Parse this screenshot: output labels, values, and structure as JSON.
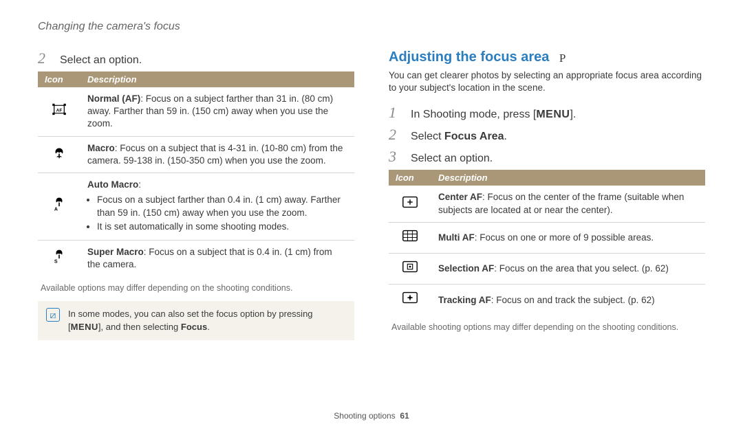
{
  "page_header": "Changing the camera's focus",
  "left": {
    "step_num": "2",
    "step_text": "Select an option.",
    "table": {
      "header_bg": "#a99778",
      "header_fg": "#ffffff",
      "cols": [
        "Icon",
        "Description"
      ],
      "rows": [
        {
          "icon": "normal-af",
          "bold": "Normal (AF)",
          "text": ": Focus on a subject farther than 31 in. (80 cm) away. Farther than 59 in. (150 cm) away when you use the zoom."
        },
        {
          "icon": "macro",
          "bold": "Macro",
          "text": ": Focus on a subject that is 4-31 in. (10-80 cm) from the camera. 59-138 in. (150-350 cm) when you use the zoom."
        },
        {
          "icon": "auto-macro",
          "bold": "Auto Macro",
          "text": ":",
          "bullets": [
            "Focus on a subject farther than 0.4 in. (1 cm) away. Farther than 59 in. (150 cm) away when you use the zoom.",
            "It is set automatically in some shooting modes."
          ]
        },
        {
          "icon": "super-macro",
          "bold": "Super Macro",
          "text": ": Focus on a subject that is 0.4 in. (1 cm) from the camera."
        }
      ]
    },
    "caption": "Available options may differ depending on the shooting conditions.",
    "note": {
      "pre": "In some modes, you can also set the focus option by pressing [",
      "menu": "MENU",
      "mid": "], and then selecting ",
      "bold": "Focus",
      "post": "."
    }
  },
  "right": {
    "title": "Adjusting the focus area",
    "mode": "P",
    "intro": "You can get clearer photos by selecting an appropriate focus area according to your subject's location in the scene.",
    "steps": [
      {
        "n": "1",
        "pre": "In Shooting mode, press [",
        "menu": "MENU",
        "post": "]."
      },
      {
        "n": "2",
        "pre": "Select ",
        "bold": "Focus Area",
        "post": "."
      },
      {
        "n": "3",
        "text": "Select an option."
      }
    ],
    "table": {
      "header_bg": "#a99778",
      "header_fg": "#ffffff",
      "cols": [
        "Icon",
        "Description"
      ],
      "rows": [
        {
          "icon": "center-af",
          "bold": "Center AF",
          "text": ": Focus on the center of the frame (suitable when subjects are located at or near the center)."
        },
        {
          "icon": "multi-af",
          "bold": "Multi AF",
          "text": ": Focus on one or more of 9 possible areas."
        },
        {
          "icon": "selection-af",
          "bold": "Selection AF",
          "text": ": Focus on the area that you select. (p. 62)"
        },
        {
          "icon": "tracking-af",
          "bold": "Tracking AF",
          "text": ": Focus on and track the subject. (p. 62)"
        }
      ]
    },
    "caption": "Available shooting options may differ depending on the shooting conditions."
  },
  "footer": {
    "section": "Shooting options",
    "page": "61"
  },
  "icons": {
    "normal-af": "<svg class='svgicon' viewBox='0 0 32 24'><rect x='7' y='5' width='18' height='14' rx='2' fill='none' stroke='#000' stroke-width='1.5'/><rect x='4' y='2' width='4' height='4' fill='#000'/><rect x='24' y='2' width='4' height='4' fill='#000'/><rect x='4' y='18' width='4' height='4' fill='#000'/><rect x='24' y='18' width='4' height='4' fill='#000'/><text x='16' y='16' text-anchor='middle' font-size='8' font-family='Arial' font-weight='bold'>AF</text></svg>",
    "macro": "<svg class='svgicon' viewBox='0 0 32 24'><path d='M16 4 C10 4 8 10 10 14 C12 10 16 10 16 14 C16 10 20 10 22 14 C24 10 22 4 16 4 Z' fill='#000'/><path d='M16 14 L16 22' stroke='#000' stroke-width='2'/><path d='M12 20 C14 18 18 18 20 20' fill='none' stroke='#000' stroke-width='1.5'/></svg>",
    "auto-macro": "<svg class='svgicon' viewBox='0 0 32 28'><path d='M16 2 C11 2 9 7 11 11 C13 8 16 8 16 11 C16 8 19 8 21 11 C23 7 21 2 16 2 Z' fill='#000'/><path d='M16 11 L16 18' stroke='#000' stroke-width='2'/><text x='7' y='26' font-size='9' font-family='Arial' font-weight='bold'>A</text></svg>",
    "super-macro": "<svg class='svgicon' viewBox='0 0 32 28'><path d='M16 2 C11 2 9 7 11 11 C13 8 16 8 16 11 C16 8 19 8 21 11 C23 7 21 2 16 2 Z' fill='#000'/><path d='M16 11 L16 18' stroke='#000' stroke-width='2'/><text x='7' y='26' font-size='9' font-family='Arial' font-weight='bold'>S</text></svg>",
    "center-af": "<svg class='svgicon' viewBox='0 0 28 22'><rect x='3' y='3' width='22' height='16' rx='2' fill='none' stroke='#000' stroke-width='1.5'/><line x1='14' y1='7' x2='14' y2='15' stroke='#000' stroke-width='1.5'/><line x1='10' y1='11' x2='18' y2='11' stroke='#000' stroke-width='1.5'/></svg>",
    "multi-af": "<svg class='svgicon' viewBox='0 0 28 22'><rect x='3' y='3' width='22' height='16' rx='2' fill='none' stroke='#000' stroke-width='1.5'/><line x1='10.3' y1='3' x2='10.3' y2='19' stroke='#000' stroke-width='1'/><line x1='17.6' y1='3' x2='17.6' y2='19' stroke='#000' stroke-width='1'/><line x1='3' y1='8.3' x2='25' y2='8.3' stroke='#000' stroke-width='1'/><line x1='3' y1='13.6' x2='25' y2='13.6' stroke='#000' stroke-width='1'/></svg>",
    "selection-af": "<svg class='svgicon' viewBox='0 0 28 22'><rect x='3' y='3' width='22' height='16' rx='2' fill='none' stroke='#000' stroke-width='1.5'/><rect x='10' y='7' width='8' height='8' fill='none' stroke='#000' stroke-width='1.2'/><circle cx='14' cy='11' r='1.5' fill='#000'/></svg>",
    "tracking-af": "<svg class='svgicon' viewBox='0 0 28 22'><rect x='3' y='3' width='22' height='16' rx='2' fill='none' stroke='#000' stroke-width='1.5'/><line x1='10' y1='11' x2='18' y2='11' stroke='#000' stroke-width='1.5'/><line x1='14' y1='7' x2='14' y2='15' stroke='#000' stroke-width='1.5'/><circle cx='14' cy='11' r='2' fill='#000'/></svg>"
  }
}
